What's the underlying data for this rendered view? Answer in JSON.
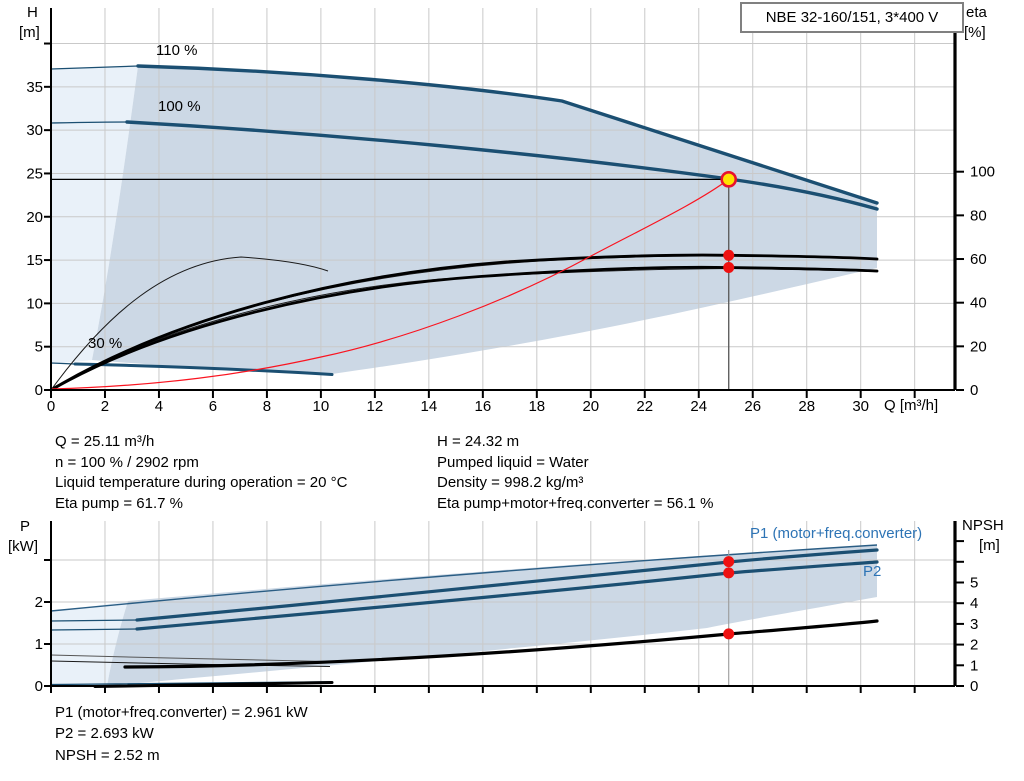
{
  "title_box": "NBE 32-160/151, 3*400 V",
  "axis_labels": {
    "h": "H",
    "h_unit": "[m]",
    "eta": "eta",
    "eta_unit": "[%]",
    "q": "Q [m³/h]",
    "p": "P",
    "p_unit": "[kW]",
    "npsh": "NPSH",
    "npsh_unit": "[m]"
  },
  "info_mid": {
    "left": [
      "Q = 25.11 m³/h",
      "n = 100 % / 2902 rpm",
      "Liquid temperature during operation = 20 °C",
      "Eta pump = 61.7 %"
    ],
    "right": [
      "H = 24.32 m",
      "Pumped liquid = Water",
      "Density = 998.2 kg/m³",
      "Eta pump+motor+freq.converter = 56.1 %"
    ]
  },
  "info_bottom": [
    "P1 (motor+freq.converter) = 2.961 kW",
    "P2 = 2.693 kW",
    "NPSH = 2.52 m"
  ],
  "chart_data": [
    {
      "type": "line",
      "title": "NBE 32-160/151, 3*400 V",
      "xlabel": "Q [m³/h]",
      "ylabel_left": "H [m]",
      "ylabel_right": "eta [%]",
      "xlim": [
        0,
        33.5
      ],
      "ylim_left": [
        0,
        44.1
      ],
      "ylim_right": [
        0,
        175
      ],
      "grid": true,
      "x_ticks": [
        0,
        2,
        4,
        6,
        8,
        10,
        12,
        14,
        16,
        18,
        20,
        22,
        24,
        26,
        28,
        30
      ],
      "x_ticks_unlabeled": [
        32
      ],
      "y_left_ticks": [
        0,
        5,
        10,
        15,
        20,
        25,
        30,
        35
      ],
      "y_left_ticks_unlabeled": [
        40
      ],
      "y_right_ticks": [
        0,
        20,
        40,
        60,
        80,
        100
      ],
      "series": [
        {
          "name": "110 %",
          "axis": "left",
          "color": "#1b4f72",
          "points": [
            [
              0,
              37.0
            ],
            [
              5,
              36.6
            ],
            [
              12,
              35.5
            ],
            [
              19,
              33.4
            ],
            [
              25,
              27.5
            ],
            [
              30.6,
              21.6
            ]
          ]
        },
        {
          "name": "100 %",
          "axis": "left",
          "color": "#1b4f72",
          "points": [
            [
              0,
              30.8
            ],
            [
              5,
              30.3
            ],
            [
              12,
              28.9
            ],
            [
              20,
              26.2
            ],
            [
              25.11,
              24.32
            ],
            [
              30.6,
              20.8
            ]
          ]
        },
        {
          "name": "30 %",
          "axis": "left",
          "color": "#1b4f72",
          "points": [
            [
              0,
              3.0
            ],
            [
              5,
              2.7
            ],
            [
              10.4,
              1.9
            ]
          ]
        },
        {
          "name": "Eta pump",
          "axis": "right",
          "color": "#000000",
          "points": [
            [
              0,
              0
            ],
            [
              5,
              23
            ],
            [
              10,
              41
            ],
            [
              15,
              52
            ],
            [
              20,
              59
            ],
            [
              25.11,
              61.7
            ],
            [
              30.6,
              60.3
            ]
          ]
        },
        {
          "name": "Eta pump+motor+freq.converter",
          "axis": "right",
          "color": "#000000",
          "points": [
            [
              0,
              0
            ],
            [
              5,
              20
            ],
            [
              10,
              37
            ],
            [
              15,
              48
            ],
            [
              20,
              54
            ],
            [
              25.11,
              56.1
            ],
            [
              30.6,
              54.8
            ]
          ]
        },
        {
          "name": "Affinity parabola to duty point",
          "axis": "left",
          "color": "#fa1420",
          "points": [
            [
              0,
              0
            ],
            [
              5,
              0.96
            ],
            [
              10,
              3.86
            ],
            [
              15,
              8.68
            ],
            [
              20,
              15.43
            ],
            [
              25.11,
              24.32
            ]
          ]
        }
      ],
      "markers": {
        "operating_point": {
          "Q": 25.11,
          "H": 24.32
        },
        "eta_points": [
          {
            "Q": 25.11,
            "eta": 61.7
          },
          {
            "Q": 25.11,
            "eta": 56.1
          }
        ]
      }
    },
    {
      "type": "line",
      "xlabel": "",
      "ylabel_left": "P [kW]",
      "ylabel_right": "NPSH [m]",
      "xlim": [
        0,
        33.5
      ],
      "ylim_left": [
        0,
        3.93
      ],
      "ylim_right": [
        0,
        7.97
      ],
      "grid": true,
      "y_left_ticks": [
        0,
        1,
        2
      ],
      "y_left_ticks_unlabeled": [
        3
      ],
      "y_right_ticks": [
        0,
        1,
        2,
        3,
        4,
        5
      ],
      "y_right_ticks_unlabeled": [
        6,
        7
      ],
      "series": [
        {
          "name": "P1 (motor+freq.converter)",
          "axis": "left",
          "color": "#1b4f72",
          "points": [
            [
              0,
              1.55
            ],
            [
              10,
              1.95
            ],
            [
              20,
              2.58
            ],
            [
              25.11,
              2.961
            ],
            [
              30.6,
              3.24
            ]
          ]
        },
        {
          "name": "P2",
          "axis": "left",
          "color": "#1b4f72",
          "points": [
            [
              0,
              1.35
            ],
            [
              10,
              1.78
            ],
            [
              20,
              2.33
            ],
            [
              25.11,
              2.693
            ],
            [
              30.6,
              2.95
            ]
          ]
        },
        {
          "name": "NPSH",
          "axis": "right",
          "color": "#000000",
          "points": [
            [
              0,
              1.0
            ],
            [
              10,
              1.2
            ],
            [
              20,
              2.0
            ],
            [
              25.11,
              2.52
            ],
            [
              30.6,
              3.15
            ]
          ]
        }
      ],
      "markers": {
        "P1": {
          "Q": 25.11,
          "P": 2.961
        },
        "P2": {
          "Q": 25.11,
          "P": 2.693
        },
        "NPSH": {
          "Q": 25.11,
          "NPSH": 2.52
        }
      }
    }
  ]
}
